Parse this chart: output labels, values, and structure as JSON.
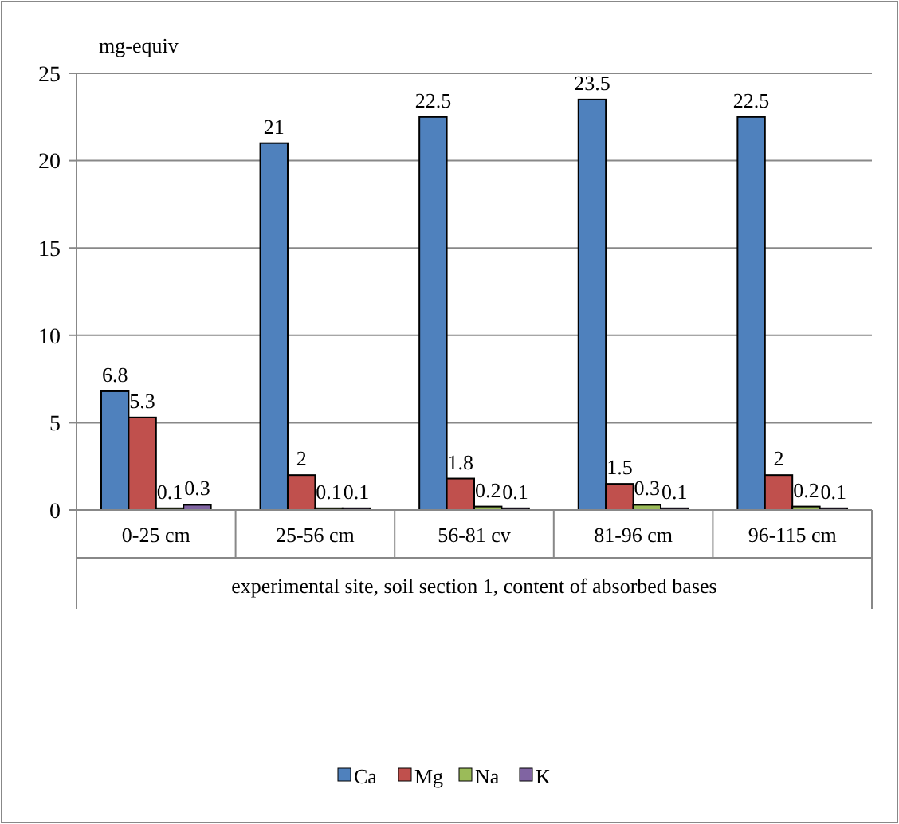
{
  "chart_data": {
    "type": "bar",
    "ylabel": "mg-equiv",
    "xlabel": "experimental site, soil section 1, content of absorbed bases",
    "categories": [
      "0-25 cm",
      "25-56 cm",
      "56-81 cv",
      "81-96 cm",
      "96-115 cm"
    ],
    "series": [
      {
        "name": "Ca",
        "color": "#4f81bd",
        "values": [
          6.8,
          21,
          22.5,
          23.5,
          22.5
        ]
      },
      {
        "name": "Mg",
        "color": "#c0504d",
        "values": [
          5.3,
          2,
          1.8,
          1.5,
          2
        ]
      },
      {
        "name": "Na",
        "color": "#9bbb59",
        "values": [
          0.1,
          0.1,
          0.2,
          0.3,
          0.2
        ]
      },
      {
        "name": "K",
        "color": "#8064a2",
        "values": [
          0.3,
          0.1,
          0.1,
          0.1,
          0.1
        ]
      }
    ],
    "ylim": [
      0,
      25
    ],
    "yticks": [
      0,
      5,
      10,
      15,
      20,
      25
    ],
    "grid": "y",
    "legend": "bottom",
    "data_labels": true
  }
}
